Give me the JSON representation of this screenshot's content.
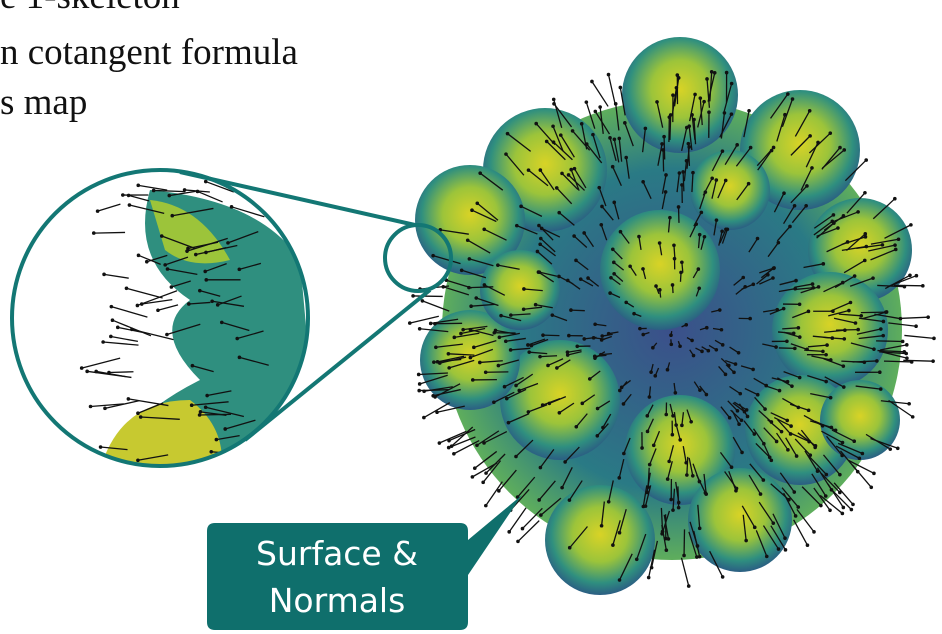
{
  "text_lines": [
    "e 1-skeleton",
    "n cotangent formula",
    "s map"
  ],
  "callout": {
    "lines": [
      "Surface &",
      "Normals"
    ]
  }
}
